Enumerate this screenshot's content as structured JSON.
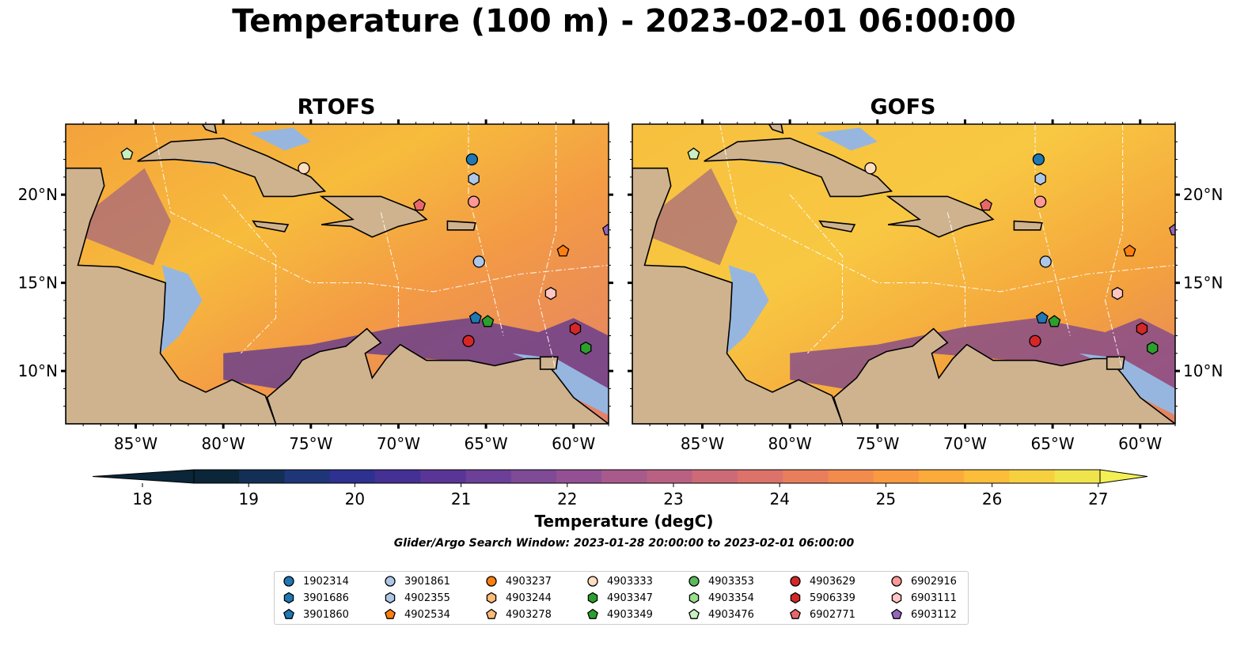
{
  "title": "Temperature (100 m) - 2023-02-01 06:00:00",
  "panels": [
    {
      "title": "RTOFS"
    },
    {
      "title": "GOFS"
    }
  ],
  "map": {
    "lon_range": [
      -89,
      -58
    ],
    "lat_range": [
      7,
      24
    ],
    "lon_ticks": [
      "85°W",
      "80°W",
      "75°W",
      "70°W",
      "65°W",
      "60°W"
    ],
    "lat_ticks": [
      "20°N",
      "15°N",
      "10°N"
    ],
    "land_color": "#cfb38e",
    "ocean_shelf_color": "#96b6e0",
    "deep_outside_color": "#062433"
  },
  "colorbar": {
    "label": "Temperature (degC)",
    "tick_labels": [
      "18",
      "19",
      "20",
      "21",
      "22",
      "23",
      "24",
      "25",
      "26",
      "27"
    ],
    "min": 18,
    "max": 27,
    "step": 0.5,
    "colors": [
      "#0a2638",
      "#132f56",
      "#1e3578",
      "#2e318f",
      "#453094",
      "#583596",
      "#6c3f98",
      "#7f4a96",
      "#935193",
      "#a75a8b",
      "#ba6183",
      "#cc6a78",
      "#dc726a",
      "#e97e5c",
      "#f38b4c",
      "#f99a40",
      "#fbab39",
      "#fbbd3a",
      "#f7d040",
      "#f0e44d"
    ]
  },
  "search_window": "Glider/Argo Search Window: 2023-01-28 20:00:00 to 2023-02-01 06:00:00",
  "legend": [
    {
      "id": "1902314",
      "color": "#1f77b4",
      "marker": "circle"
    },
    {
      "id": "3901686",
      "color": "#1f77b4",
      "marker": "hexagon"
    },
    {
      "id": "3901860",
      "color": "#1f77b4",
      "marker": "pentagon"
    },
    {
      "id": "3901861",
      "color": "#aec7e8",
      "marker": "circle"
    },
    {
      "id": "4902355",
      "color": "#aec7e8",
      "marker": "hexagon"
    },
    {
      "id": "4902534",
      "color": "#ff7f0e",
      "marker": "pentagon"
    },
    {
      "id": "4903237",
      "color": "#ff7f0e",
      "marker": "circle"
    },
    {
      "id": "4903244",
      "color": "#ffbb78",
      "marker": "hexagon"
    },
    {
      "id": "4903278",
      "color": "#ffbb78",
      "marker": "pentagon"
    },
    {
      "id": "4903333",
      "color": "#ffddc0",
      "marker": "circle"
    },
    {
      "id": "4903347",
      "color": "#2ca02c",
      "marker": "hexagon"
    },
    {
      "id": "4903349",
      "color": "#2ca02c",
      "marker": "pentagon"
    },
    {
      "id": "4903353",
      "color": "#5cb85c",
      "marker": "circle"
    },
    {
      "id": "4903354",
      "color": "#98df8a",
      "marker": "hexagon"
    },
    {
      "id": "4903476",
      "color": "#c8f0c0",
      "marker": "pentagon"
    },
    {
      "id": "4903629",
      "color": "#d62728",
      "marker": "circle"
    },
    {
      "id": "5906339",
      "color": "#d62728",
      "marker": "hexagon"
    },
    {
      "id": "6902771",
      "color": "#e8686a",
      "marker": "pentagon"
    },
    {
      "id": "6902916",
      "color": "#ff9896",
      "marker": "circle"
    },
    {
      "id": "6903111",
      "color": "#ffc6c4",
      "marker": "hexagon"
    },
    {
      "id": "6903112",
      "color": "#9467bd",
      "marker": "pentagon"
    }
  ],
  "floats": [
    {
      "color": "#1f77b4",
      "marker": "circle",
      "lon": -65.8,
      "lat": 22.0
    },
    {
      "color": "#aec7e8",
      "marker": "hexagon",
      "lon": -65.7,
      "lat": 20.9
    },
    {
      "color": "#ff9896",
      "marker": "circle",
      "lon": -65.7,
      "lat": 19.6
    },
    {
      "color": "#ffddc0",
      "marker": "circle",
      "lon": -75.4,
      "lat": 21.5
    },
    {
      "color": "#c8f0c0",
      "marker": "pentagon",
      "lon": -85.5,
      "lat": 22.3
    },
    {
      "color": "#e8686a",
      "marker": "pentagon",
      "lon": -68.8,
      "lat": 19.4
    },
    {
      "color": "#9467bd",
      "marker": "pentagon",
      "lon": -58.0,
      "lat": 18.0
    },
    {
      "color": "#ff7f0e",
      "marker": "pentagon",
      "lon": -60.6,
      "lat": 16.8
    },
    {
      "color": "#aec7e8",
      "marker": "circle",
      "lon": -65.4,
      "lat": 16.2
    },
    {
      "color": "#ffc6c4",
      "marker": "hexagon",
      "lon": -61.3,
      "lat": 14.4
    },
    {
      "color": "#1f77b4",
      "marker": "pentagon",
      "lon": -65.6,
      "lat": 13.0
    },
    {
      "color": "#2ca02c",
      "marker": "pentagon",
      "lon": -64.9,
      "lat": 12.8
    },
    {
      "color": "#d62728",
      "marker": "hexagon",
      "lon": -59.9,
      "lat": 12.4
    },
    {
      "color": "#d62728",
      "marker": "circle",
      "lon": -66.0,
      "lat": 11.7
    },
    {
      "color": "#2ca02c",
      "marker": "hexagon",
      "lon": -59.3,
      "lat": 11.3
    }
  ]
}
